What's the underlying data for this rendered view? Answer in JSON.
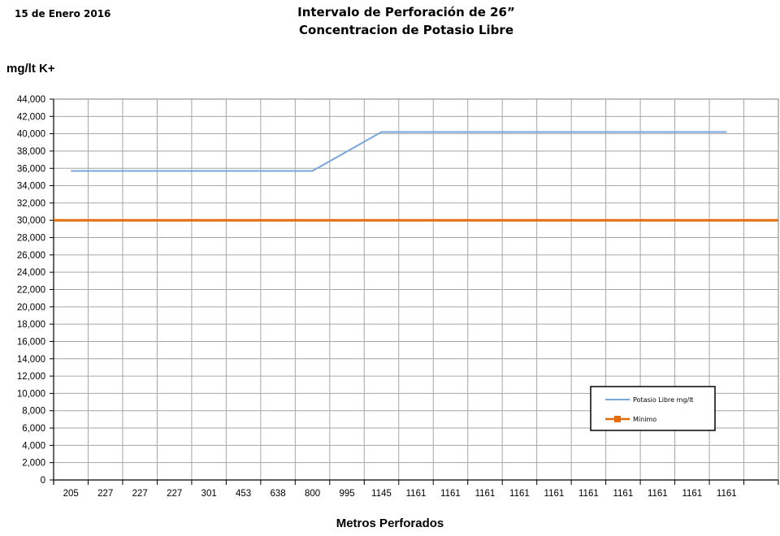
{
  "header": {
    "date": "15  de  Enero  2016",
    "title_line1": "Intervalo de Perforación de 26”",
    "title_line2": "Concentracion de Potasio Libre"
  },
  "chart_data": {
    "type": "line",
    "title": "Intervalo de Perforación de 26” Concentracion de Potasio Libre",
    "xlabel": "Metros Perforados",
    "ylabel": "mg/lt K+",
    "ylim": [
      0,
      44000
    ],
    "ytick_step": 2000,
    "yticks": [
      "0",
      "2,000",
      "4,000",
      "6,000",
      "8,000",
      "10,000",
      "12,000",
      "14,000",
      "16,000",
      "18,000",
      "20,000",
      "22,000",
      "24,000",
      "26,000",
      "28,000",
      "30,000",
      "32,000",
      "34,000",
      "36,000",
      "38,000",
      "40,000",
      "42,000",
      "44,000"
    ],
    "categories": [
      "205",
      "227",
      "227",
      "227",
      "301",
      "453",
      "638",
      "800",
      "995",
      "1145",
      "1161",
      "1161",
      "1161",
      "1161",
      "1161",
      "1161",
      "1161",
      "1161",
      "1161",
      "1161"
    ],
    "series": [
      {
        "name": "Potasio Libre mg/lt",
        "color": "#7aa6dc",
        "values": [
          35700,
          35700,
          35700,
          35700,
          35700,
          35700,
          35700,
          35700,
          37950,
          40200,
          40200,
          40200,
          40200,
          40200,
          40200,
          40200,
          40200,
          40200,
          40200,
          40200
        ]
      },
      {
        "name": "Mínimo",
        "color": "#e46c0a",
        "constant": 30000
      }
    ],
    "grid": true,
    "legend_position": "bottom-right"
  }
}
